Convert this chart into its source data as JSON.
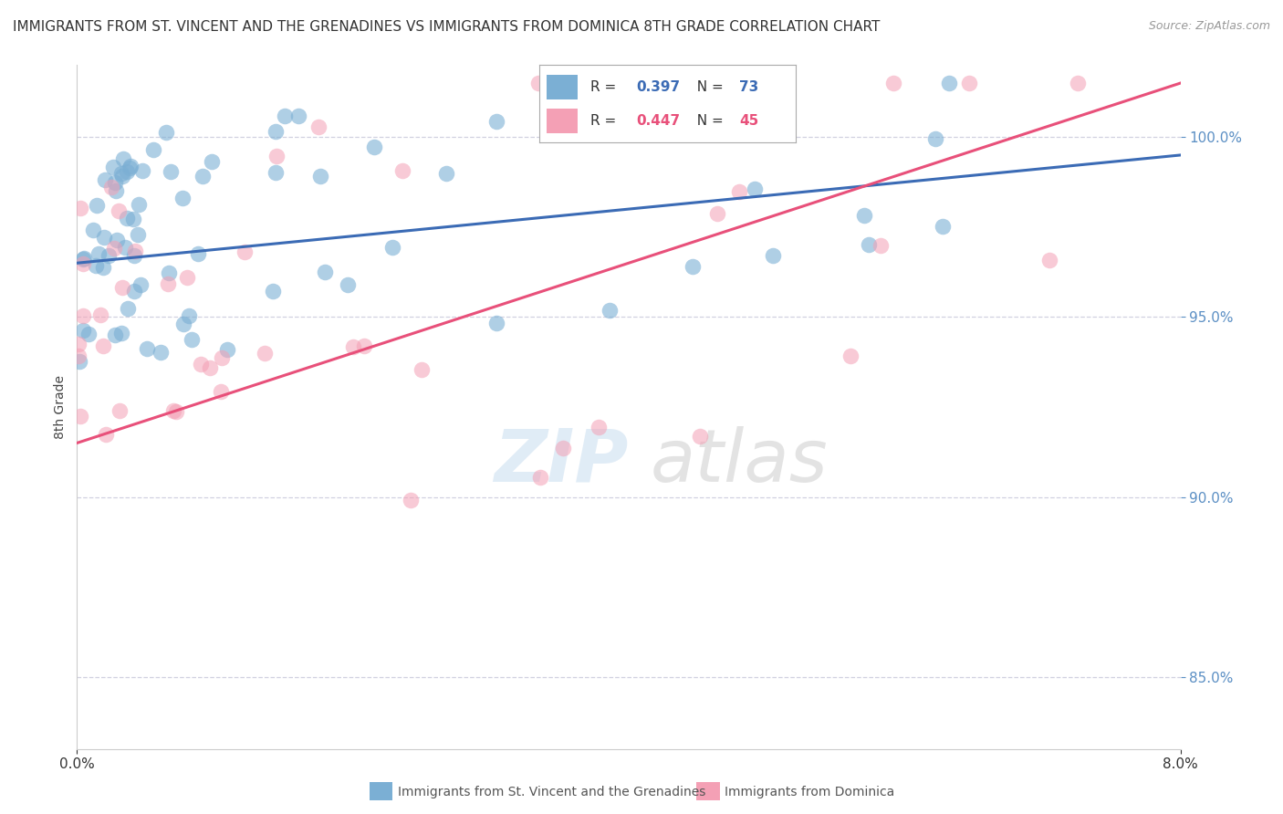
{
  "title": "IMMIGRANTS FROM ST. VINCENT AND THE GRENADINES VS IMMIGRANTS FROM DOMINICA 8TH GRADE CORRELATION CHART",
  "source": "Source: ZipAtlas.com",
  "ylabel": "8th Grade",
  "blue_R": 0.397,
  "blue_N": 73,
  "pink_R": 0.447,
  "pink_N": 45,
  "blue_color": "#7BAFD4",
  "pink_color": "#F4A0B5",
  "blue_edge_color": "#5B8FC4",
  "pink_edge_color": "#E87090",
  "blue_line_color": "#3B6BB5",
  "pink_line_color": "#E8507A",
  "legend_label_blue": "Immigrants from St. Vincent and the Grenadines",
  "legend_label_pink": "Immigrants from Dominica",
  "xlim": [
    0.0,
    0.08
  ],
  "ylim": [
    83.0,
    102.0
  ],
  "yticks": [
    85.0,
    90.0,
    95.0,
    100.0
  ],
  "xticks": [
    0.0,
    0.08
  ],
  "tick_color": "#5B8FC4",
  "grid_color": "#CCCCDD",
  "title_fontsize": 11,
  "source_fontsize": 9,
  "ylabel_fontsize": 10,
  "tick_fontsize": 11
}
